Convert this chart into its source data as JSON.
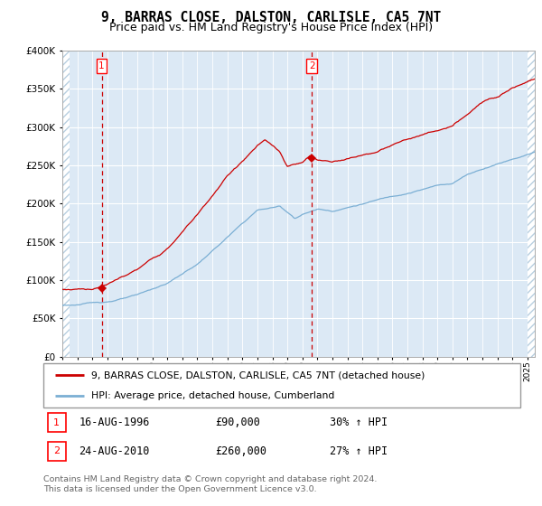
{
  "title": "9, BARRAS CLOSE, DALSTON, CARLISLE, CA5 7NT",
  "subtitle": "Price paid vs. HM Land Registry's House Price Index (HPI)",
  "ylim": [
    0,
    400000
  ],
  "yticks": [
    0,
    50000,
    100000,
    150000,
    200000,
    250000,
    300000,
    350000,
    400000
  ],
  "xlim_start": 1994.0,
  "xlim_end": 2025.5,
  "background_color": "#dce9f5",
  "grid_color": "#ffffff",
  "red_line_color": "#cc0000",
  "blue_line_color": "#7bafd4",
  "marker1_x": 1996.62,
  "marker1_y": 90000,
  "marker2_x": 2010.64,
  "marker2_y": 260000,
  "legend_line1": "9, BARRAS CLOSE, DALSTON, CARLISLE, CA5 7NT (detached house)",
  "legend_line2": "HPI: Average price, detached house, Cumberland",
  "annotation1_date": "16-AUG-1996",
  "annotation1_price": "£90,000",
  "annotation1_hpi": "30% ↑ HPI",
  "annotation2_date": "24-AUG-2010",
  "annotation2_price": "£260,000",
  "annotation2_hpi": "27% ↑ HPI",
  "footnote": "Contains HM Land Registry data © Crown copyright and database right 2024.\nThis data is licensed under the Open Government Licence v3.0."
}
